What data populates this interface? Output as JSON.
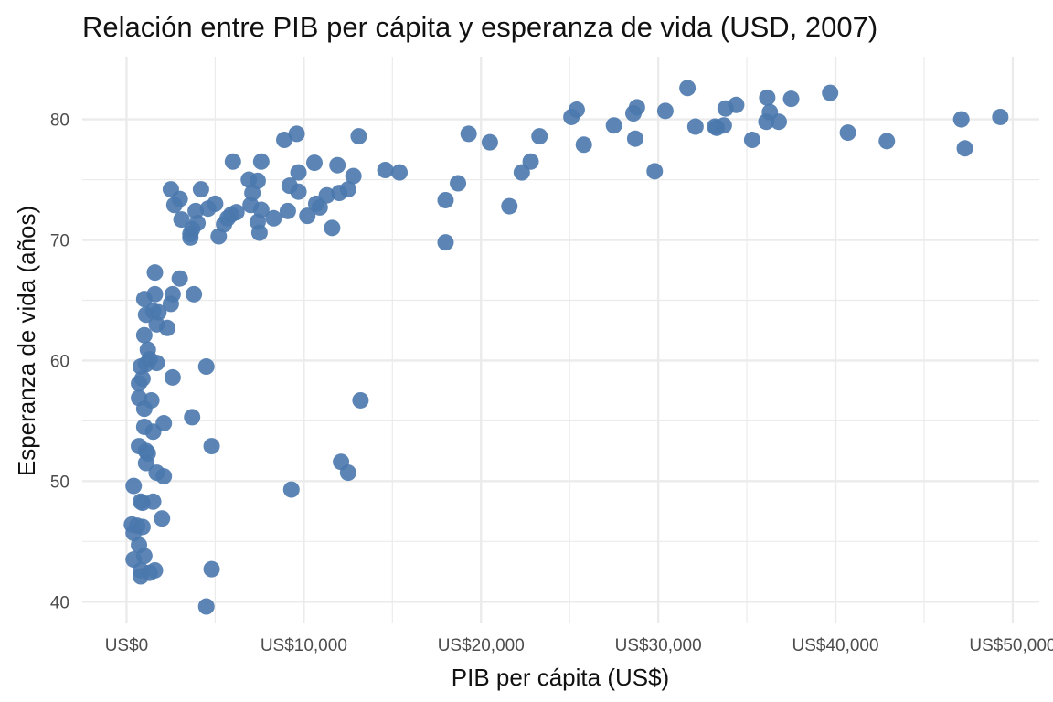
{
  "chart_data": {
    "type": "scatter",
    "title": "Relación entre PIB per cápita y esperanza de vida (USD, 2007)",
    "xlabel": "PIB per cápita (US$)",
    "ylabel": "Esperanza de vida (años)",
    "xlim": [
      -2500,
      51500
    ],
    "ylim": [
      38.2,
      85.2
    ],
    "x_ticks": [
      0,
      10000,
      20000,
      30000,
      40000,
      50000
    ],
    "x_tick_labels": [
      "US$0",
      "US$10,000",
      "US$20,000",
      "US$30,000",
      "US$40,000",
      "US$50,000"
    ],
    "x_minor_ticks": [
      5000,
      15000,
      25000,
      35000,
      45000
    ],
    "y_ticks": [
      40,
      50,
      60,
      70,
      80
    ],
    "y_tick_labels": [
      "40",
      "50",
      "60",
      "70",
      "80"
    ],
    "y_minor_ticks": [
      45,
      55,
      65,
      75
    ],
    "grid": true,
    "legend": "none",
    "point_color": "#4a78ad",
    "grid_color": "#ebebeb",
    "points": [
      {
        "x": 31650,
        "y": 82.6
      },
      {
        "x": 39700,
        "y": 82.2
      },
      {
        "x": 36150,
        "y": 81.8
      },
      {
        "x": 37500,
        "y": 81.7
      },
      {
        "x": 34400,
        "y": 81.2
      },
      {
        "x": 33800,
        "y": 80.9
      },
      {
        "x": 28800,
        "y": 81.0
      },
      {
        "x": 25400,
        "y": 80.8
      },
      {
        "x": 36300,
        "y": 80.6
      },
      {
        "x": 30400,
        "y": 80.7
      },
      {
        "x": 28600,
        "y": 80.5
      },
      {
        "x": 25100,
        "y": 80.2
      },
      {
        "x": 49300,
        "y": 80.2
      },
      {
        "x": 47100,
        "y": 80.0
      },
      {
        "x": 36100,
        "y": 79.8
      },
      {
        "x": 36800,
        "y": 79.8
      },
      {
        "x": 27500,
        "y": 79.5
      },
      {
        "x": 32100,
        "y": 79.4
      },
      {
        "x": 33200,
        "y": 79.4
      },
      {
        "x": 33700,
        "y": 79.5
      },
      {
        "x": 33300,
        "y": 79.3
      },
      {
        "x": 40700,
        "y": 78.9
      },
      {
        "x": 19300,
        "y": 78.8
      },
      {
        "x": 23300,
        "y": 78.6
      },
      {
        "x": 28700,
        "y": 78.4
      },
      {
        "x": 35300,
        "y": 78.3
      },
      {
        "x": 42900,
        "y": 78.2
      },
      {
        "x": 20500,
        "y": 78.1
      },
      {
        "x": 25800,
        "y": 77.9
      },
      {
        "x": 47300,
        "y": 77.6
      },
      {
        "x": 22800,
        "y": 76.5
      },
      {
        "x": 22300,
        "y": 75.6
      },
      {
        "x": 29800,
        "y": 75.7
      },
      {
        "x": 18700,
        "y": 74.7
      },
      {
        "x": 18000,
        "y": 73.3
      },
      {
        "x": 21600,
        "y": 72.8
      },
      {
        "x": 18000,
        "y": 69.8
      },
      {
        "x": 9600,
        "y": 78.8
      },
      {
        "x": 8900,
        "y": 78.3
      },
      {
        "x": 13100,
        "y": 78.6
      },
      {
        "x": 6000,
        "y": 76.5
      },
      {
        "x": 7600,
        "y": 76.5
      },
      {
        "x": 10600,
        "y": 76.4
      },
      {
        "x": 11900,
        "y": 76.2
      },
      {
        "x": 9700,
        "y": 75.6
      },
      {
        "x": 14600,
        "y": 75.8
      },
      {
        "x": 15400,
        "y": 75.6
      },
      {
        "x": 12800,
        "y": 75.3
      },
      {
        "x": 6900,
        "y": 75.0
      },
      {
        "x": 7400,
        "y": 74.9
      },
      {
        "x": 9200,
        "y": 74.5
      },
      {
        "x": 12500,
        "y": 74.2
      },
      {
        "x": 9700,
        "y": 74.0
      },
      {
        "x": 12000,
        "y": 73.9
      },
      {
        "x": 7100,
        "y": 73.9
      },
      {
        "x": 11300,
        "y": 73.7
      },
      {
        "x": 10700,
        "y": 73.0
      },
      {
        "x": 10900,
        "y": 72.7
      },
      {
        "x": 7000,
        "y": 72.9
      },
      {
        "x": 7600,
        "y": 72.5
      },
      {
        "x": 9100,
        "y": 72.4
      },
      {
        "x": 8300,
        "y": 71.8
      },
      {
        "x": 10200,
        "y": 72.0
      },
      {
        "x": 7400,
        "y": 71.5
      },
      {
        "x": 11600,
        "y": 71.0
      },
      {
        "x": 7500,
        "y": 70.6
      },
      {
        "x": 6200,
        "y": 72.3
      },
      {
        "x": 5900,
        "y": 72.1
      },
      {
        "x": 5700,
        "y": 71.8
      },
      {
        "x": 5500,
        "y": 71.3
      },
      {
        "x": 5000,
        "y": 73.0
      },
      {
        "x": 5200,
        "y": 70.3
      },
      {
        "x": 4600,
        "y": 72.6
      },
      {
        "x": 4200,
        "y": 74.2
      },
      {
        "x": 2500,
        "y": 74.2
      },
      {
        "x": 3000,
        "y": 73.4
      },
      {
        "x": 2700,
        "y": 72.9
      },
      {
        "x": 3900,
        "y": 72.4
      },
      {
        "x": 3100,
        "y": 71.7
      },
      {
        "x": 3700,
        "y": 70.9
      },
      {
        "x": 4000,
        "y": 71.4
      },
      {
        "x": 3600,
        "y": 70.2
      },
      {
        "x": 3600,
        "y": 70.5
      },
      {
        "x": 1600,
        "y": 67.3
      },
      {
        "x": 3000,
        "y": 66.8
      },
      {
        "x": 1000,
        "y": 65.1
      },
      {
        "x": 1600,
        "y": 65.5
      },
      {
        "x": 2600,
        "y": 65.5
      },
      {
        "x": 3800,
        "y": 65.5
      },
      {
        "x": 2500,
        "y": 64.7
      },
      {
        "x": 1500,
        "y": 64.1
      },
      {
        "x": 1800,
        "y": 64.0
      },
      {
        "x": 1100,
        "y": 63.8
      },
      {
        "x": 1700,
        "y": 63.0
      },
      {
        "x": 2300,
        "y": 62.7
      },
      {
        "x": 1000,
        "y": 62.1
      },
      {
        "x": 1200,
        "y": 60.9
      },
      {
        "x": 1300,
        "y": 60.1
      },
      {
        "x": 1700,
        "y": 59.8
      },
      {
        "x": 800,
        "y": 59.5
      },
      {
        "x": 1100,
        "y": 59.7
      },
      {
        "x": 4500,
        "y": 59.5
      },
      {
        "x": 900,
        "y": 58.5
      },
      {
        "x": 2600,
        "y": 58.6
      },
      {
        "x": 700,
        "y": 58.1
      },
      {
        "x": 700,
        "y": 56.9
      },
      {
        "x": 1400,
        "y": 56.7
      },
      {
        "x": 13200,
        "y": 56.7
      },
      {
        "x": 1000,
        "y": 56.0
      },
      {
        "x": 3700,
        "y": 55.3
      },
      {
        "x": 2100,
        "y": 54.8
      },
      {
        "x": 1000,
        "y": 54.5
      },
      {
        "x": 1500,
        "y": 54.1
      },
      {
        "x": 700,
        "y": 52.9
      },
      {
        "x": 4800,
        "y": 52.9
      },
      {
        "x": 1100,
        "y": 52.5
      },
      {
        "x": 1200,
        "y": 52.3
      },
      {
        "x": 1100,
        "y": 51.5
      },
      {
        "x": 12100,
        "y": 51.6
      },
      {
        "x": 1700,
        "y": 50.7
      },
      {
        "x": 2100,
        "y": 50.4
      },
      {
        "x": 12500,
        "y": 50.7
      },
      {
        "x": 400,
        "y": 49.6
      },
      {
        "x": 9300,
        "y": 49.3
      },
      {
        "x": 800,
        "y": 48.3
      },
      {
        "x": 900,
        "y": 48.2
      },
      {
        "x": 1500,
        "y": 48.3
      },
      {
        "x": 2000,
        "y": 46.9
      },
      {
        "x": 300,
        "y": 46.4
      },
      {
        "x": 600,
        "y": 46.3
      },
      {
        "x": 900,
        "y": 46.2
      },
      {
        "x": 400,
        "y": 45.7
      },
      {
        "x": 700,
        "y": 44.7
      },
      {
        "x": 400,
        "y": 43.5
      },
      {
        "x": 1000,
        "y": 43.8
      },
      {
        "x": 800,
        "y": 42.6
      },
      {
        "x": 1600,
        "y": 42.6
      },
      {
        "x": 1300,
        "y": 42.4
      },
      {
        "x": 4800,
        "y": 42.7
      },
      {
        "x": 800,
        "y": 42.1
      },
      {
        "x": 4500,
        "y": 39.6
      }
    ]
  }
}
